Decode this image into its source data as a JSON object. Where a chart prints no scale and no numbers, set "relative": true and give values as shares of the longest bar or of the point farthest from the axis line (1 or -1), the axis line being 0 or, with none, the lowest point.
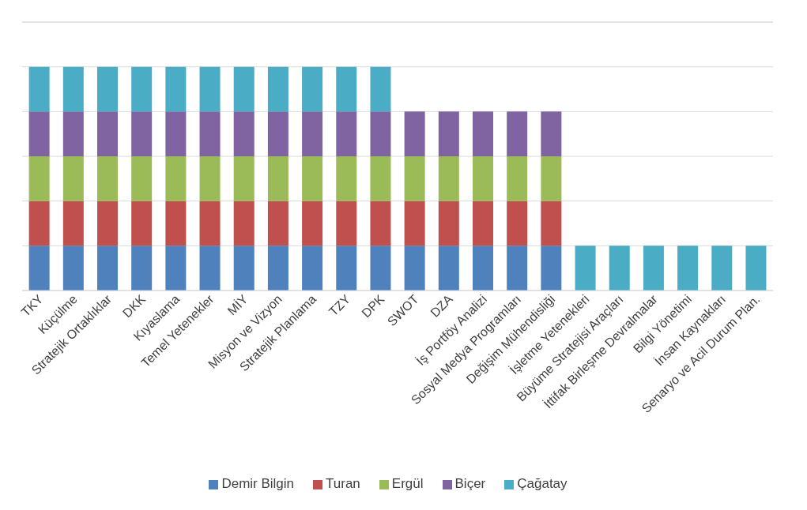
{
  "chart_data": {
    "type": "bar",
    "stacked": true,
    "relative": true,
    "grid": "y",
    "legend": "bottom",
    "categories": [
      "TKY",
      "Küçülme",
      "Stratejik Ortaklıklar",
      "DKK",
      "Kıyaslama",
      "Temel Yetenekler",
      "MİY",
      "Misyon ve Vizyon",
      "Stratejik Planlama",
      "TZY",
      "DPK",
      "SWOT",
      "DZA",
      "İş Portföy Analizi",
      "Sosyal Medya Programları",
      "Değişim Mühendisliği",
      "İşletme Yetenekleri",
      "Büyüme Stratejisi Araçları",
      "İttifak Birleşme Devralmalar",
      "Bilgi Yönetimi",
      "İnsan Kaynakları",
      "Senaryo ve Acil Durum Plan."
    ],
    "series": [
      {
        "name": "Demir Bilgin",
        "color": "#4f81bd",
        "values": [
          0.2,
          0.2,
          0.2,
          0.2,
          0.2,
          0.2,
          0.2,
          0.2,
          0.2,
          0.2,
          0.2,
          0.2,
          0.2,
          0.2,
          0.2,
          0.2,
          null,
          null,
          null,
          null,
          null,
          null
        ]
      },
      {
        "name": "Turan",
        "color": "#c0504d",
        "values": [
          0.2,
          0.2,
          0.2,
          0.2,
          0.2,
          0.2,
          0.2,
          0.2,
          0.2,
          0.2,
          0.2,
          0.2,
          0.2,
          0.2,
          0.2,
          0.2,
          null,
          null,
          null,
          null,
          null,
          null
        ]
      },
      {
        "name": "Ergül",
        "color": "#9bbb59",
        "values": [
          0.2,
          0.2,
          0.2,
          0.2,
          0.2,
          0.2,
          0.2,
          0.2,
          0.2,
          0.2,
          0.2,
          0.2,
          0.2,
          0.2,
          0.2,
          0.2,
          null,
          null,
          null,
          null,
          null,
          null
        ]
      },
      {
        "name": "Biçer",
        "color": "#8064a2",
        "values": [
          0.2,
          0.2,
          0.2,
          0.2,
          0.2,
          0.2,
          0.2,
          0.2,
          0.2,
          0.2,
          0.2,
          0.2,
          0.2,
          0.2,
          0.2,
          0.2,
          null,
          null,
          null,
          null,
          null,
          null
        ]
      },
      {
        "name": "Çağatay",
        "color": "#4bacc6",
        "values": [
          0.2,
          0.2,
          0.2,
          0.2,
          0.2,
          0.2,
          0.2,
          0.2,
          0.2,
          0.2,
          0.2,
          null,
          null,
          null,
          null,
          null,
          0.2,
          0.2,
          0.2,
          0.2,
          0.2,
          0.2
        ]
      }
    ]
  }
}
